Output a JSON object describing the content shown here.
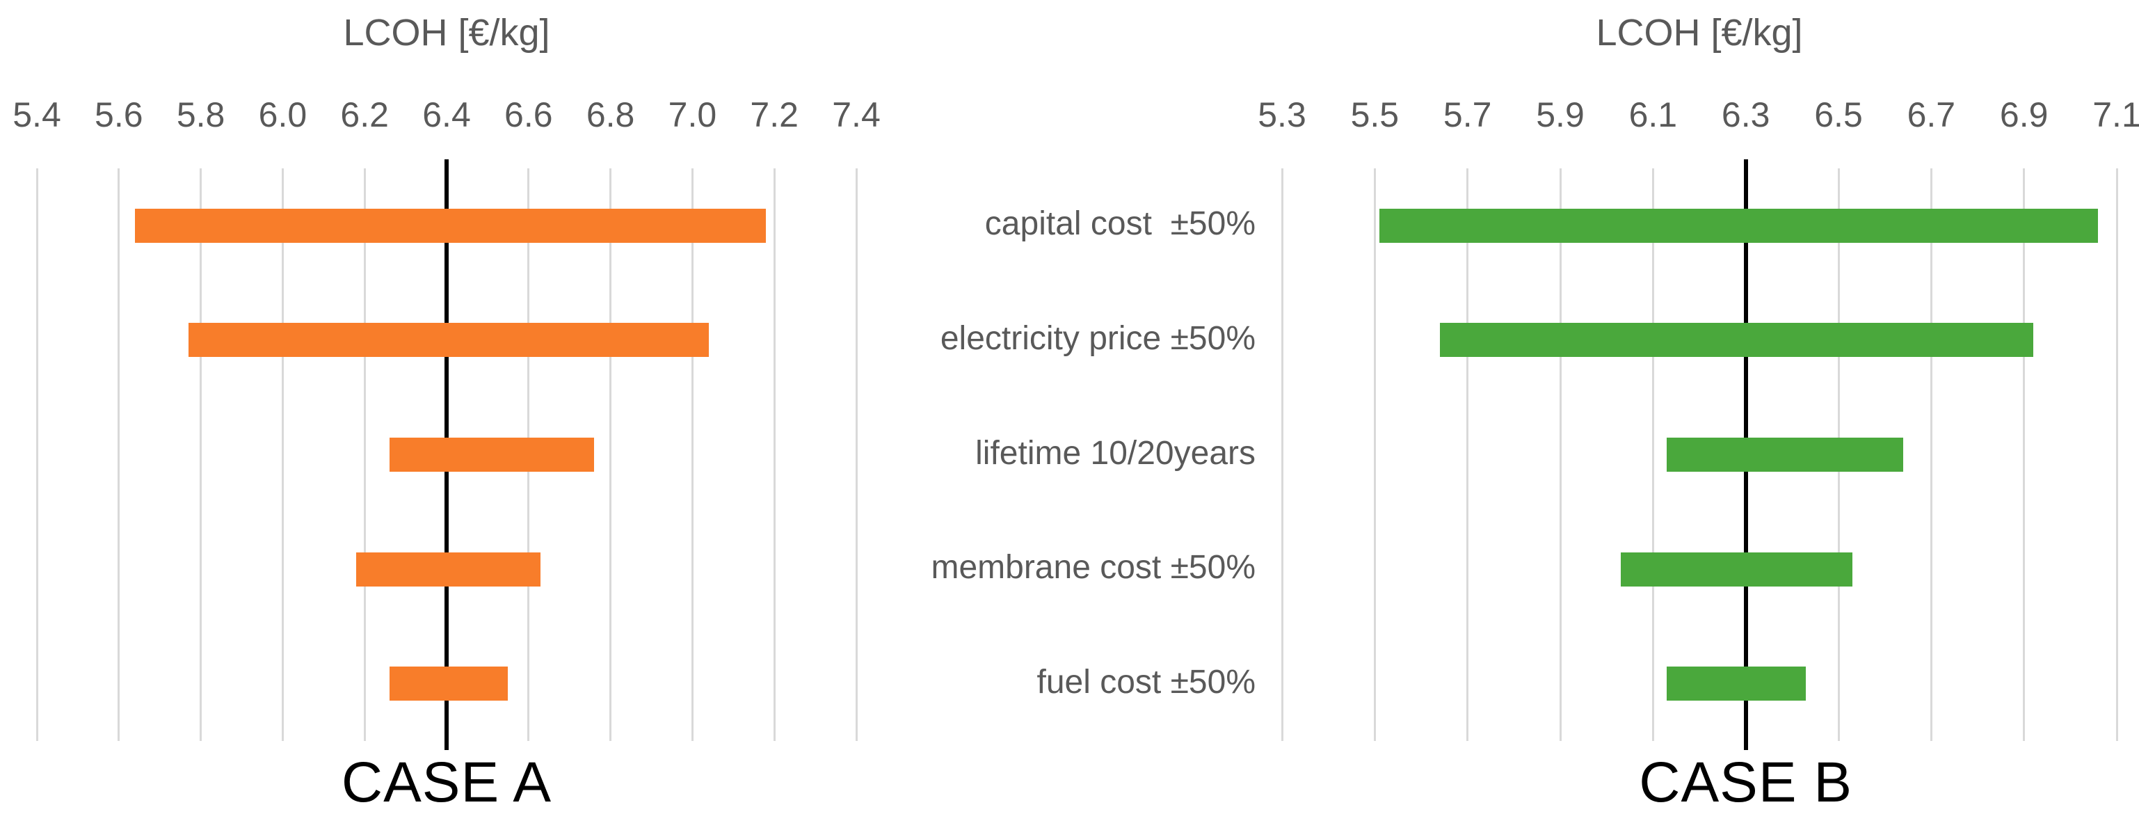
{
  "figure": {
    "background": "#ffffff",
    "text_color": "#595959",
    "gridline_color": "#d9d9d9",
    "baseline_color": "#000000"
  },
  "category_labels": [
    "capital cost  ±50%",
    "electricity price ±50%",
    "lifetime 10/20years",
    "membrane cost ±50%",
    "fuel cost ±50%"
  ],
  "chart_data": [
    {
      "type": "bar",
      "orientation": "horizontal-range",
      "title": "LCOH [€/kg]",
      "case_label": "CASE A",
      "bar_color": "#f87d2a",
      "axis_min": 5.4,
      "axis_max": 7.4,
      "tick_labels": [
        "5.4",
        "5.6",
        "5.8",
        "6.0",
        "6.2",
        "6.4",
        "6.6",
        "6.8",
        "7.0",
        "7.2",
        "7.4"
      ],
      "base_line": 6.4,
      "categories": [
        "capital cost  ±50%",
        "electricity price ±50%",
        "lifetime 10/20years",
        "membrane cost ±50%",
        "fuel cost ±50%"
      ],
      "ranges": [
        [
          5.64,
          7.18
        ],
        [
          5.77,
          7.04
        ],
        [
          6.26,
          6.76
        ],
        [
          6.18,
          6.63
        ],
        [
          6.26,
          6.55
        ]
      ],
      "grid": true,
      "legend": "none"
    },
    {
      "type": "bar",
      "orientation": "horizontal-range",
      "title": "LCOH [€/kg]",
      "case_label": "CASE B",
      "bar_color": "#4aa83c",
      "axis_min": 5.3,
      "axis_max": 7.1,
      "tick_labels": [
        "5.3",
        "5.5",
        "5.7",
        "5.9",
        "6.1",
        "6.3",
        "6.5",
        "6.7",
        "6.9",
        "7.1"
      ],
      "base_line": 6.3,
      "categories": [
        "capital cost  ±50%",
        "electricity price ±50%",
        "lifetime 10/20years",
        "membrane cost ±50%",
        "fuel cost ±50%"
      ],
      "ranges": [
        [
          5.51,
          7.06
        ],
        [
          5.64,
          6.92
        ],
        [
          6.13,
          6.64
        ],
        [
          6.03,
          6.53
        ],
        [
          6.13,
          6.43
        ]
      ],
      "grid": true,
      "legend": "none"
    }
  ]
}
